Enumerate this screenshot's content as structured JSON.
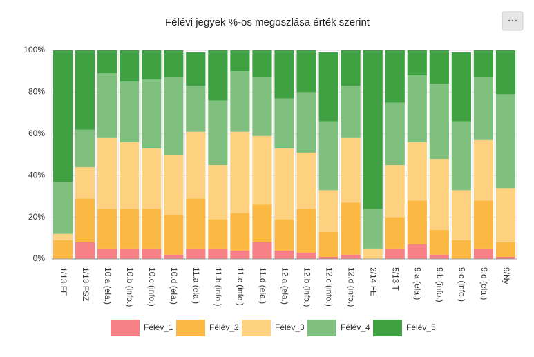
{
  "chart_data": {
    "type": "stacked_bar",
    "title": "Félévi jegyek %-os megoszlása érték szerint",
    "categories": [
      "1/13 FE",
      "1/13 FSZ",
      "10.a (ela.)",
      "10.b (info.)",
      "10.c (info.)",
      "10.d (ela.)",
      "11.a (ela.)",
      "11.b (info.)",
      "11.c (info.)",
      "11.d (ela.)",
      "12.a (ela.)",
      "12.b (info.)",
      "12.c (info.)",
      "12.d (info.)",
      "2/14 FE",
      "5/13 T",
      "9.a (ela.)",
      "9.b (info.)",
      "9.c (info.)",
      "9.d (ela.)",
      "9/Ny"
    ],
    "series": [
      {
        "name": "Félév_1",
        "color": "#f77f86",
        "values": [
          0,
          8,
          5,
          5,
          5,
          2,
          5,
          5,
          4,
          8,
          4,
          3,
          1,
          2,
          0,
          5,
          7,
          2,
          0,
          5,
          1
        ]
      },
      {
        "name": "Félév_2",
        "color": "#fbb843",
        "values": [
          9,
          21,
          19,
          19,
          19,
          19,
          24,
          14,
          18,
          18,
          15,
          21,
          12,
          25,
          0,
          15,
          21,
          12,
          9,
          23,
          7
        ]
      },
      {
        "name": "Félév_3",
        "color": "#fdd17f",
        "values": [
          3,
          15,
          34,
          32,
          29,
          29,
          32,
          26,
          39,
          33,
          34,
          27,
          20,
          31,
          5,
          25,
          28,
          34,
          24,
          29,
          26
        ]
      },
      {
        "name": "Félév_4",
        "color": "#80c07f",
        "values": [
          25,
          18,
          31,
          29,
          33,
          37,
          22,
          31,
          29,
          28,
          24,
          29,
          33,
          25,
          19,
          30,
          32,
          36,
          33,
          30,
          45
        ]
      },
      {
        "name": "Félév_5",
        "color": "#3fa142",
        "values": [
          63,
          38,
          11,
          15,
          14,
          13,
          16,
          24,
          10,
          13,
          23,
          20,
          33,
          17,
          76,
          25,
          12,
          16,
          33,
          13,
          21
        ]
      }
    ],
    "ylim": [
      0,
      100
    ],
    "yticks": [
      {
        "value": 0,
        "label": "0%"
      },
      {
        "value": 20,
        "label": "20%"
      },
      {
        "value": 40,
        "label": "40%"
      },
      {
        "value": 60,
        "label": "60%"
      },
      {
        "value": 80,
        "label": "80%"
      },
      {
        "value": 100,
        "label": "100%"
      }
    ],
    "grid": true,
    "legend": "bottom"
  }
}
